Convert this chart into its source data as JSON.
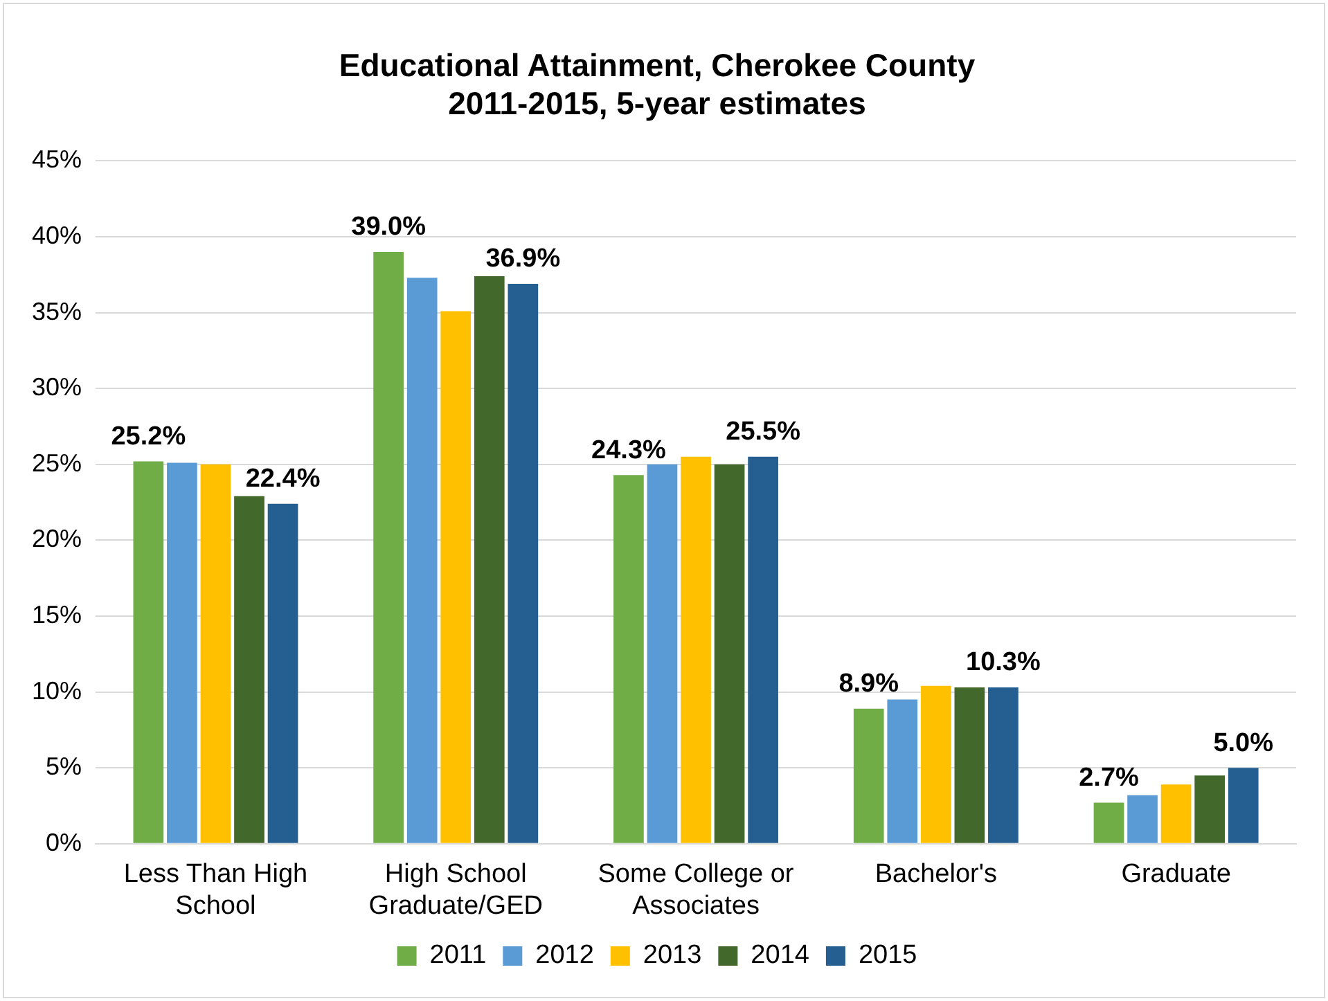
{
  "chart_data": {
    "type": "bar",
    "title": [
      "Educational Attainment, Cherokee County",
      "2011-2015, 5-year estimates"
    ],
    "categories": [
      [
        "Less Than High",
        "School"
      ],
      [
        "High School",
        "Graduate/GED"
      ],
      [
        "Some College or",
        "Associates"
      ],
      "Bachelor's",
      "Graduate"
    ],
    "series": [
      {
        "name": "2011",
        "color": "#70ad47",
        "values": [
          25.2,
          39.0,
          24.3,
          8.9,
          2.7
        ],
        "value_labels": [
          "25.2%",
          "39.0%",
          "24.3%",
          "8.9%",
          "2.7%"
        ]
      },
      {
        "name": "2012",
        "color": "#5b9bd5",
        "values": [
          25.1,
          37.3,
          25.0,
          9.5,
          3.2
        ]
      },
      {
        "name": "2013",
        "color": "#ffc000",
        "values": [
          25.0,
          35.1,
          25.5,
          10.4,
          3.9
        ]
      },
      {
        "name": "2014",
        "color": "#43682b",
        "values": [
          22.9,
          37.4,
          25.0,
          10.3,
          4.5
        ]
      },
      {
        "name": "2015",
        "color": "#255e91",
        "values": [
          22.4,
          36.9,
          25.5,
          10.3,
          5.0
        ],
        "value_labels": [
          "22.4%",
          "36.9%",
          "25.5%",
          "10.3%",
          "5.0%"
        ]
      }
    ],
    "ylim": [
      0,
      45
    ],
    "yticks": [
      {
        "value": 0,
        "label": "0%"
      },
      {
        "value": 5,
        "label": "5%"
      },
      {
        "value": 10,
        "label": "10%"
      },
      {
        "value": 15,
        "label": "15%"
      },
      {
        "value": 20,
        "label": "20%"
      },
      {
        "value": 25,
        "label": "25%"
      },
      {
        "value": 30,
        "label": "30%"
      },
      {
        "value": 35,
        "label": "35%"
      },
      {
        "value": 40,
        "label": "40%"
      },
      {
        "value": 45,
        "label": "45%"
      }
    ],
    "grid": "y",
    "legend": "bottom"
  }
}
